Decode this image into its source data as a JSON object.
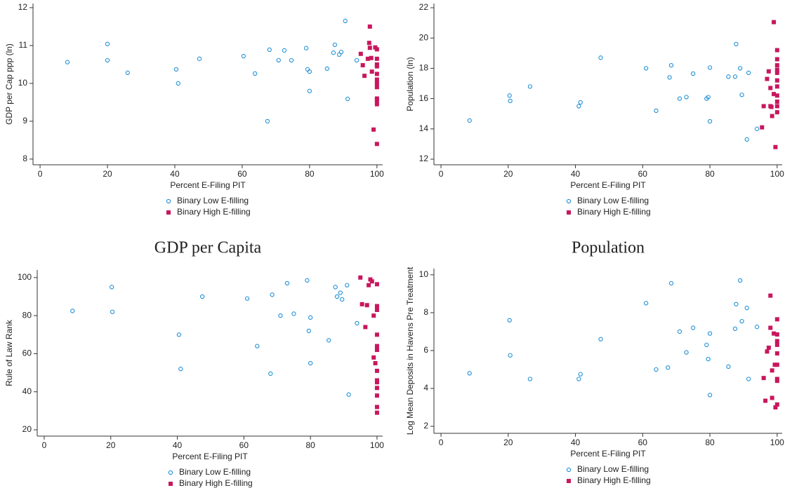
{
  "chart_data": [
    {
      "type": "scatter",
      "xlabel": "Percent E-Filing PIT",
      "ylabel": "GDP per Cap ppp (ln)",
      "caption": "GDP per Capita",
      "xlim": [
        -2.1,
        101.7
      ],
      "xticks": [
        0,
        20,
        40,
        60,
        80,
        100
      ],
      "ylim": [
        7.85,
        12.11
      ],
      "yticks": [
        8,
        9,
        10,
        11,
        12
      ],
      "legend": "bottom",
      "series": [
        {
          "name": "Binary Low E-filling",
          "color": "#1e90d6",
          "marker": "hollow-circle",
          "x": [
            8.1,
            20,
            20,
            26,
            40.4,
            41,
            47.3,
            60.4,
            63.8,
            67.5,
            68.1,
            70.8,
            72.5,
            74.6,
            79,
            79.4,
            80,
            80,
            85.2,
            87.1,
            87.5,
            88.8,
            89.4,
            90.6,
            91.3,
            94
          ],
          "values": [
            10.56,
            11.04,
            10.61,
            10.28,
            10.37,
            10.0,
            10.65,
            10.72,
            10.26,
            9.0,
            10.89,
            10.61,
            10.87,
            10.61,
            10.93,
            10.37,
            10.31,
            9.8,
            10.39,
            10.81,
            11.02,
            10.76,
            10.83,
            11.65,
            9.59,
            10.61
          ]
        },
        {
          "name": "Binary High E-filling",
          "color": "#c8175d",
          "marker": "square",
          "x": [
            95.2,
            95.8,
            96.3,
            97.3,
            97.7,
            97.9,
            97.9,
            98.3,
            98.5,
            99,
            99.5,
            100,
            100,
            100,
            100,
            100,
            100,
            100,
            100,
            100,
            100,
            100,
            100
          ],
          "values": [
            10.78,
            10.48,
            10.2,
            10.65,
            11.07,
            10.94,
            11.5,
            10.67,
            10.31,
            8.78,
            10.95,
            10.9,
            10.65,
            10.45,
            10.25,
            10.1,
            10.0,
            9.9,
            9.6,
            9.55,
            9.45,
            8.4,
            10.5
          ]
        }
      ]
    },
    {
      "type": "scatter",
      "xlabel": "Percent E-Filing PIT",
      "ylabel": "Population (ln)",
      "caption": "Population",
      "xlim": [
        -2.1,
        101.5
      ],
      "xticks": [
        0,
        20,
        40,
        60,
        80,
        100
      ],
      "ylim": [
        11.63,
        22.28
      ],
      "yticks": [
        12,
        14,
        16,
        18,
        20,
        22
      ],
      "legend": "bottom",
      "series": [
        {
          "name": "Binary Low E-filling",
          "color": "#1e90d6",
          "marker": "hollow-circle",
          "x": [
            8.5,
            20.4,
            20.6,
            26.5,
            41,
            41.5,
            47.5,
            61,
            64,
            68,
            68.5,
            71,
            73,
            75,
            79,
            79.5,
            80,
            80,
            85.5,
            87.5,
            87.8,
            89,
            89.5,
            91,
            91.5,
            94
          ],
          "values": [
            14.55,
            16.2,
            15.85,
            16.8,
            15.5,
            15.75,
            18.7,
            18.0,
            15.2,
            17.4,
            18.2,
            16.0,
            16.1,
            17.65,
            16.0,
            16.1,
            18.05,
            14.5,
            17.45,
            17.45,
            19.6,
            18.0,
            16.25,
            13.3,
            17.7,
            14.0
          ]
        },
        {
          "name": "Binary High E-filling",
          "color": "#c8175d",
          "marker": "square",
          "x": [
            95.5,
            96,
            97,
            97.5,
            98,
            98,
            98.3,
            98.5,
            99,
            99,
            99.5,
            100,
            100,
            100,
            100,
            100,
            100,
            100,
            100,
            100,
            100,
            100
          ],
          "values": [
            14.1,
            15.5,
            17.3,
            17.8,
            16.7,
            15.5,
            15.45,
            14.85,
            16.3,
            21.05,
            12.8,
            19.2,
            18.6,
            18.2,
            17.9,
            17.7,
            17.2,
            16.8,
            16.2,
            15.8,
            15.5,
            15.1
          ]
        }
      ]
    },
    {
      "type": "scatter",
      "xlabel": "Percent E-Filing PIT",
      "ylabel": "Rule of Law Rank",
      "xlim": [
        -2.1,
        101.7
      ],
      "xticks": [
        0,
        20,
        40,
        60,
        80,
        100
      ],
      "ylim": [
        16.7,
        104
      ],
      "yticks": [
        20,
        40,
        60,
        80,
        100
      ],
      "legend": "bottom",
      "series": [
        {
          "name": "Binary Low E-filling",
          "color": "#1e90d6",
          "marker": "hollow-circle",
          "x": [
            8.5,
            20.3,
            20.5,
            40.5,
            41,
            47.5,
            61,
            64,
            68,
            68.5,
            71,
            73,
            75,
            79,
            79.5,
            80,
            80,
            85.5,
            87.5,
            88,
            89,
            89.5,
            91,
            91.5,
            94
          ],
          "values": [
            82.5,
            95,
            82,
            70,
            52,
            90,
            89,
            64,
            49.5,
            91,
            80,
            97,
            81,
            98.5,
            72,
            55,
            79,
            67,
            95,
            90,
            92,
            88.5,
            96,
            38.5,
            76
          ]
        },
        {
          "name": "Binary High E-filling",
          "color": "#c8175d",
          "marker": "square",
          "x": [
            95,
            95.5,
            96.5,
            97,
            97.5,
            98,
            98.5,
            99,
            99,
            99.5,
            100,
            100,
            100,
            100,
            100,
            100,
            100,
            100,
            100,
            100,
            100,
            100,
            100
          ],
          "values": [
            100,
            86,
            74,
            85.5,
            96,
            99,
            98,
            80,
            58,
            55,
            96.5,
            85,
            83,
            70,
            64,
            62,
            51,
            46,
            45,
            42,
            38,
            32,
            29
          ]
        }
      ]
    },
    {
      "type": "scatter",
      "xlabel": "Percent E-Filing PIT",
      "ylabel": "Log Mean Deposits in Havens Pre Treatment",
      "xlim": [
        -2.1,
        101.5
      ],
      "xticks": [
        0,
        20,
        40,
        60,
        80,
        100
      ],
      "ylim": [
        1.63,
        10.33
      ],
      "yticks": [
        2,
        4,
        6,
        8,
        10
      ],
      "legend": "bottom",
      "series": [
        {
          "name": "Binary Low E-filling",
          "color": "#1e90d6",
          "marker": "hollow-circle",
          "x": [
            8.5,
            20.4,
            20.6,
            26.5,
            41,
            41.5,
            47.5,
            61,
            64,
            67.5,
            68.5,
            71,
            73,
            75,
            79,
            79.5,
            80,
            80,
            85.5,
            87.5,
            87.8,
            89,
            89.5,
            91,
            91.5,
            94
          ],
          "values": [
            4.8,
            7.6,
            5.75,
            4.5,
            4.5,
            4.75,
            6.6,
            8.5,
            5.0,
            5.1,
            9.55,
            7.0,
            5.9,
            7.2,
            6.3,
            5.55,
            3.65,
            6.9,
            5.15,
            7.15,
            8.45,
            9.7,
            7.55,
            8.25,
            4.5,
            7.25
          ]
        },
        {
          "name": "Binary High E-filling",
          "color": "#c8175d",
          "marker": "square",
          "x": [
            96,
            96.5,
            97,
            97.5,
            98,
            98,
            98.5,
            98.5,
            99,
            99.3,
            99.5,
            100,
            100,
            100,
            100,
            100,
            100,
            100,
            100,
            100
          ],
          "values": [
            4.55,
            3.35,
            5.95,
            6.15,
            8.9,
            7.2,
            4.95,
            3.5,
            6.9,
            5.25,
            3.0,
            7.65,
            6.85,
            6.5,
            6.3,
            5.85,
            5.25,
            4.5,
            4.4,
            3.15
          ]
        }
      ]
    }
  ]
}
